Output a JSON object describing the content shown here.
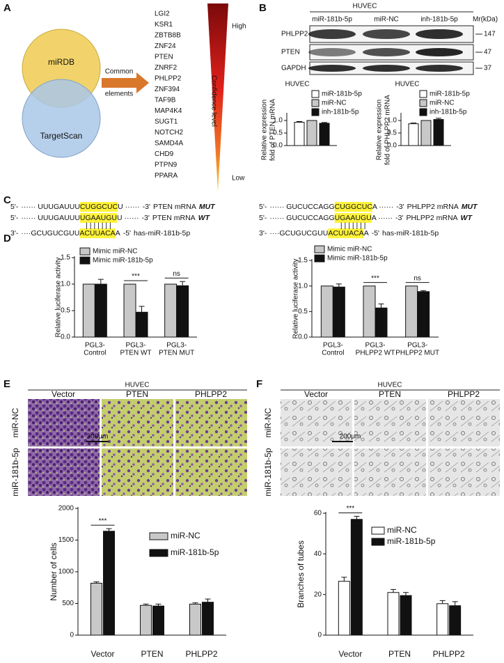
{
  "panel_labels": [
    "A",
    "B",
    "C",
    "D",
    "E",
    "F"
  ],
  "venn": {
    "sets": [
      "miRDB",
      "TargetScan"
    ],
    "arrow_label": [
      "Common",
      "elements"
    ]
  },
  "genes": [
    {
      "name": "LGI2"
    },
    {
      "name": "KSR1"
    },
    {
      "name": "ZBTB8B"
    },
    {
      "name": "ZNF24"
    },
    {
      "name": "PTEN",
      "color": "#e0201b"
    },
    {
      "name": "ZNRF2"
    },
    {
      "name": "PHLPP2",
      "color": "#e0201b"
    },
    {
      "name": "ZNF394"
    },
    {
      "name": "TAF9B"
    },
    {
      "name": "MAP4K4"
    },
    {
      "name": "SUGT1"
    },
    {
      "name": "NOTCH2"
    },
    {
      "name": "SAMD4A"
    },
    {
      "name": "CHD9"
    },
    {
      "name": "PTPN9"
    },
    {
      "name": "PPARA"
    }
  ],
  "confidence": {
    "high": "High",
    "label": "Confidence level",
    "low": "Low"
  },
  "western": {
    "cell": "HUVEC",
    "lanes": [
      "miR-181b-5p",
      "miR-NC",
      "inh-181b-5p"
    ],
    "unit": "Mr(kDa)",
    "rows": [
      {
        "protein": "PHLPP2",
        "mr": 147
      },
      {
        "protein": "PTEN",
        "mr": 47
      },
      {
        "protein": "GAPDH",
        "mr": 37
      }
    ]
  },
  "sequences": [
    {
      "lines": [
        {
          "end5": "5'-",
          "lead": "······ UUUGAUUU",
          "seed": "CUGGCUC",
          "tail": "U ······",
          "end3": "-3'",
          "label": "PTEN mRNA",
          "tag": "MUT"
        },
        {
          "end5": "5'-",
          "lead": "······ UUUGAUUU",
          "seed": "UGAAUGU",
          "tail": "U ······",
          "end3": "-3'",
          "label": "PTEN mRNA",
          "tag": "WT"
        },
        {
          "end5": "3'-",
          "lead": "····GCUGUCGUU",
          "seed": "ACUUACA",
          "tail": "A",
          "end3": "-5'",
          "label": "has-miR-181b-5p"
        }
      ],
      "pairs": "| | | | | | |"
    },
    {
      "lines": [
        {
          "end5": "5'-",
          "lead": "······ GUCUCCAGG",
          "seed": "CUGGCUC",
          "tail": "A ······",
          "end3": "-3'",
          "label": "PHLPP2 mRNA",
          "tag": "MUT"
        },
        {
          "end5": "5'-",
          "lead": "······ GUCUCCAGG",
          "seed": "UGAAUGU",
          "tail": "A ······",
          "end3": "-3'",
          "label": "PHLPP2 mRNA",
          "tag": "WT"
        },
        {
          "end5": "3'-",
          "lead": "····GCUGUCGUU",
          "seed": "ACUUACA",
          "tail": "A",
          "end3": "-5'",
          "label": "has-miR-181b-5p"
        }
      ],
      "pairs": "| | | | | | |"
    }
  ],
  "micrographs": [
    {
      "cell": "HUVEC",
      "columns": [
        "Vector",
        "PTEN",
        "PHLPP2"
      ],
      "rows": [
        "miR-NC",
        "miR-181b-5p"
      ],
      "scale_bar": "200μm"
    },
    {
      "cell": "HUVEC",
      "columns": [
        "Vector",
        "PTEN",
        "PHLPP2"
      ],
      "rows": [
        "miR-NC",
        "miR-181b-5p"
      ],
      "scale_bar": "200μm"
    }
  ],
  "chart_data": [
    {
      "type": "bar",
      "title": "HUVEC",
      "ylabel": [
        "Relative expression",
        "fold of PTEN mRNA"
      ],
      "categories": [
        null
      ],
      "series": [
        {
          "name": "miR-181b-5p",
          "color": "#ffffff",
          "values": [
            0.93
          ],
          "errors": [
            0.03
          ]
        },
        {
          "name": "miR-NC",
          "color": "#c8c8c8",
          "values": [
            1.0
          ],
          "errors": [
            0.0
          ]
        },
        {
          "name": "inh-181b-5p",
          "color": "#111111",
          "values": [
            0.89
          ],
          "errors": [
            0.03
          ]
        }
      ],
      "ylim": [
        0,
        1.25
      ],
      "yticks": [
        {
          "value": 0,
          "label": "0.0"
        },
        0.5,
        {
          "value": 1,
          "label": "1.0"
        }
      ]
    },
    {
      "type": "bar",
      "title": "HUVEC",
      "ylabel": [
        "Relative expression",
        "fold of PHLPP2 mRNA"
      ],
      "categories": [
        null
      ],
      "series": [
        {
          "name": "miR-181b-5p",
          "color": "#ffffff",
          "values": [
            0.87
          ],
          "errors": [
            0.03
          ]
        },
        {
          "name": "miR-NC",
          "color": "#c8c8c8",
          "values": [
            1.0
          ],
          "errors": [
            0.0
          ]
        },
        {
          "name": "inh-181b-5p",
          "color": "#111111",
          "values": [
            1.04
          ],
          "errors": [
            0.05
          ]
        }
      ],
      "ylim": [
        0,
        1.25
      ],
      "yticks": [
        {
          "value": 0,
          "label": "0.0"
        },
        0.5,
        {
          "value": 1,
          "label": "1.0"
        }
      ]
    },
    {
      "type": "bar",
      "ylabel": [
        "Relative luciferase activity"
      ],
      "categories": [
        [
          "PGL3-",
          "Control"
        ],
        [
          "PGL3-",
          "PTEN WT"
        ],
        [
          "PGL3-",
          "PTEN MUT"
        ]
      ],
      "series": [
        {
          "name": "Mimic miR-NC",
          "color": "#c8c8c8",
          "values": [
            1.0,
            1.0,
            1.0
          ]
        },
        {
          "name": "Mimic miR-181b-5p",
          "color": "#111111",
          "values": [
            1.0,
            0.47,
            0.97
          ],
          "errors": [
            0.09,
            0.11,
            0.08
          ]
        }
      ],
      "significance": [
        null,
        "***",
        "ns"
      ],
      "ylim": [
        0,
        1.5
      ],
      "yticks": [
        {
          "value": 0,
          "label": "0.0"
        },
        0.5,
        {
          "value": 1,
          "label": "1.0"
        },
        1.5
      ]
    },
    {
      "type": "bar",
      "ylabel": [
        "Relative luciferase activity"
      ],
      "categories": [
        [
          "PGL3-",
          "Control"
        ],
        [
          "PGL3-",
          "PHLPP2 WT"
        ],
        [
          "PGL3-",
          "PHLPP2 MUT"
        ]
      ],
      "series": [
        {
          "name": "Mimic miR-NC",
          "color": "#c8c8c8",
          "values": [
            1.0,
            1.0,
            1.0
          ]
        },
        {
          "name": "Mimic miR-181b-5p",
          "color": "#111111",
          "values": [
            0.98,
            0.57,
            0.89
          ],
          "errors": [
            0.06,
            0.08,
            0.02
          ]
        }
      ],
      "significance": [
        null,
        "***",
        "ns"
      ],
      "ylim": [
        0,
        1.5
      ],
      "yticks": [
        {
          "value": 0,
          "label": "0.0"
        },
        0.5,
        {
          "value": 1,
          "label": "1.0"
        },
        1.5
      ]
    },
    {
      "type": "bar",
      "ylabel": [
        "Number of cells"
      ],
      "categories": [
        "Vector",
        "PTEN",
        "PHLPP2"
      ],
      "series": [
        {
          "name": "miR-NC",
          "color": "#c8c8c8",
          "values": [
            820,
            470,
            490
          ],
          "errors": [
            20,
            20,
            20
          ]
        },
        {
          "name": "miR-181b-5p",
          "color": "#111111",
          "values": [
            1640,
            460,
            520
          ],
          "errors": [
            40,
            30,
            50
          ]
        }
      ],
      "significance": [
        "***",
        null,
        null
      ],
      "ylim": [
        0,
        2000
      ],
      "yticks": [
        0,
        500,
        1000,
        1500,
        2000
      ]
    },
    {
      "type": "bar",
      "ylabel": [
        "Branches of tubes"
      ],
      "categories": [
        "Vector",
        "PTEN",
        "PHLPP2"
      ],
      "series": [
        {
          "name": "miR-NC",
          "color": "#ffffff",
          "values": [
            26.5,
            21,
            15.5
          ],
          "errors": [
            2,
            1.5,
            1.5
          ]
        },
        {
          "name": "miR-181b-5p",
          "color": "#111111",
          "values": [
            57,
            19.5,
            14.5
          ],
          "errors": [
            1.5,
            1.5,
            2
          ]
        }
      ],
      "significance": [
        "***",
        null,
        null
      ],
      "ylim": [
        0,
        60
      ],
      "yticks": [
        0,
        20,
        40,
        60
      ]
    }
  ]
}
